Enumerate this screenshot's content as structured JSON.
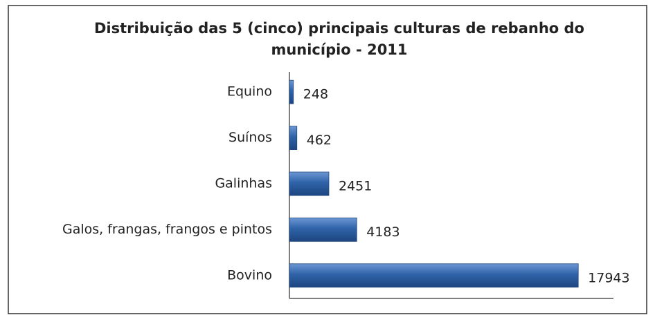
{
  "chart_data": {
    "type": "barh",
    "title": [
      "Distribuição das 5 (cinco) principais culturas de rebanho do",
      "município - 2011"
    ],
    "categories": [
      "Equino",
      "Suínos",
      "Galinhas",
      "Galos, frangas, frangos e pintos",
      "Bovino"
    ],
    "values": [
      248,
      462,
      2451,
      4183,
      17943
    ],
    "color": "#2f63a8",
    "xlim": [
      0,
      20000
    ]
  }
}
